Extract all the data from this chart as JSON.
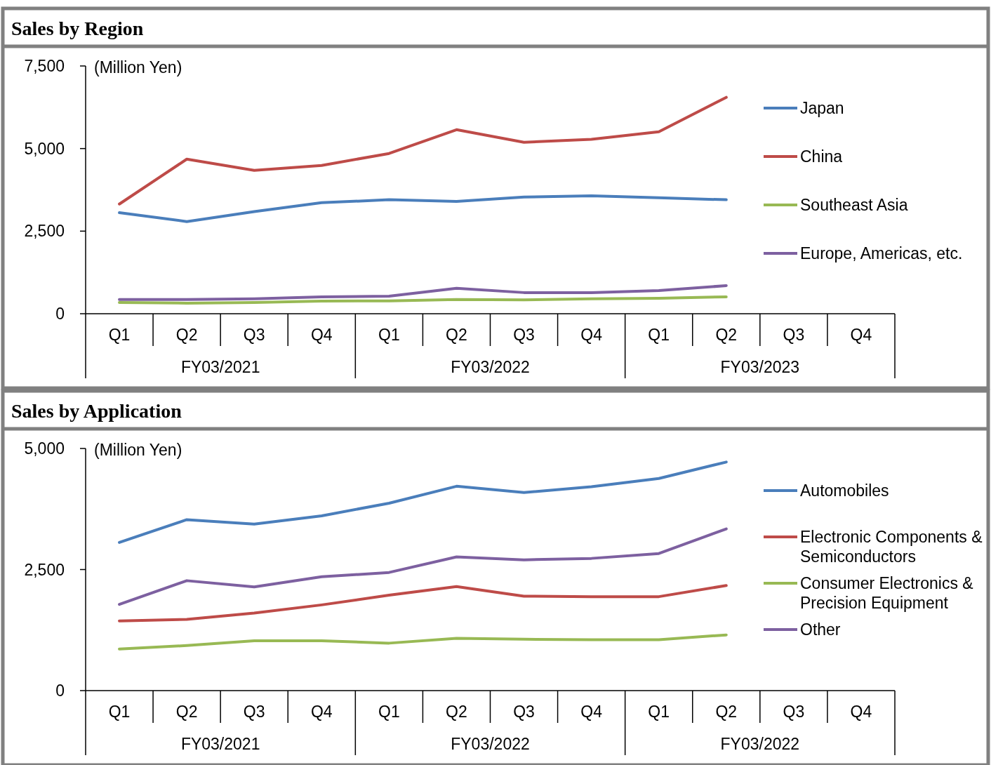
{
  "chart_data": [
    {
      "type": "line",
      "title": "Sales by Region",
      "ylabel": "(Million Yen)",
      "categories": [
        "Q1",
        "Q2",
        "Q3",
        "Q4",
        "Q1",
        "Q2",
        "Q3",
        "Q4",
        "Q1",
        "Q2",
        "Q3",
        "Q4"
      ],
      "annotations": [
        "FY03/2021",
        "FY03/2022",
        "FY03/2023"
      ],
      "series": [
        {
          "name": "Japan",
          "color": "#4a7ebb",
          "values": [
            3060,
            2790,
            3090,
            3360,
            3450,
            3400,
            3530,
            3570,
            3510,
            3450,
            null,
            null
          ]
        },
        {
          "name": "China",
          "color": "#be4b48",
          "values": [
            3320,
            4680,
            4340,
            4490,
            4850,
            5570,
            5190,
            5280,
            5510,
            6550,
            null,
            null
          ]
        },
        {
          "name": "Southeast Asia",
          "color": "#98b954",
          "values": [
            340,
            320,
            340,
            380,
            390,
            430,
            420,
            450,
            470,
            510,
            null,
            null
          ]
        },
        {
          "name": "Europe, Americas, etc.",
          "color": "#7d60a0",
          "values": [
            430,
            430,
            450,
            510,
            530,
            770,
            640,
            640,
            700,
            850,
            null,
            null
          ]
        }
      ],
      "ylim": [
        0,
        7500
      ],
      "yticks": [
        0,
        {
          "value": 2500,
          "label": "2,500"
        },
        {
          "value": 5000,
          "label": "5,000"
        },
        {
          "value": 7500,
          "label": "7,500"
        }
      ],
      "grid": false,
      "legend": "right",
      "marker": "none"
    },
    {
      "type": "line",
      "title": "Sales by Application",
      "ylabel": "(Million Yen)",
      "categories": [
        "Q1",
        "Q2",
        "Q3",
        "Q4",
        "Q1",
        "Q2",
        "Q3",
        "Q4",
        "Q1",
        "Q2",
        "Q3",
        "Q4"
      ],
      "annotations": [
        "FY03/2021",
        "FY03/2022",
        "FY03/2022"
      ],
      "series": [
        {
          "name": "Automobiles",
          "color": "#4a7ebb",
          "values": [
            3060,
            3530,
            3440,
            3610,
            3870,
            4220,
            4090,
            4210,
            4380,
            4720,
            null,
            null
          ]
        },
        {
          "name": "Electronic Components & Semiconductors",
          "color": "#be4b48",
          "values": [
            1440,
            1470,
            1600,
            1770,
            1970,
            2150,
            1950,
            1940,
            1940,
            2170,
            null,
            null
          ]
        },
        {
          "name": "Consumer Electronics & Precision Equipment",
          "color": "#98b954",
          "values": [
            860,
            930,
            1030,
            1030,
            980,
            1080,
            1060,
            1050,
            1050,
            1150,
            null,
            null
          ]
        },
        {
          "name": "Other",
          "color": "#7d60a0",
          "values": [
            1780,
            2270,
            2140,
            2350,
            2440,
            2760,
            2700,
            2730,
            2830,
            3340,
            null,
            null
          ]
        }
      ],
      "ylim": [
        0,
        5000
      ],
      "yticks": [
        0,
        {
          "value": 2500,
          "label": "2,500"
        },
        {
          "value": 5000,
          "label": "5,000"
        }
      ],
      "grid": false,
      "legend": "right",
      "marker": "none"
    }
  ]
}
